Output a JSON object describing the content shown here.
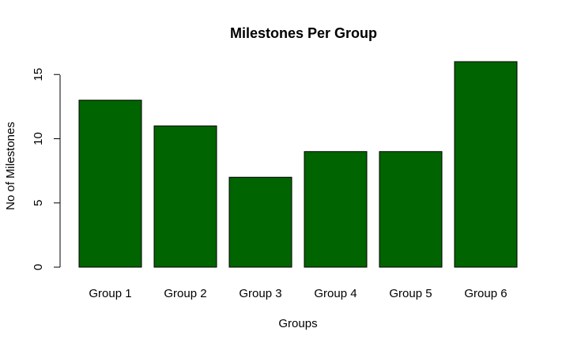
{
  "chart_data": {
    "type": "bar",
    "title": "Milestones Per Group",
    "xlabel": "Groups",
    "ylabel": "No of Milestones",
    "categories": [
      "Group 1",
      "Group 2",
      "Group 3",
      "Group 4",
      "Group 5",
      "Group 6"
    ],
    "values": [
      13,
      11,
      7,
      9,
      9,
      16
    ],
    "ylim": [
      0,
      16
    ],
    "yticks": [
      "0",
      "5",
      "10",
      "15"
    ],
    "bar_color": "#006400",
    "bar_border_color": "#000000",
    "grid": false,
    "legend": "none"
  }
}
